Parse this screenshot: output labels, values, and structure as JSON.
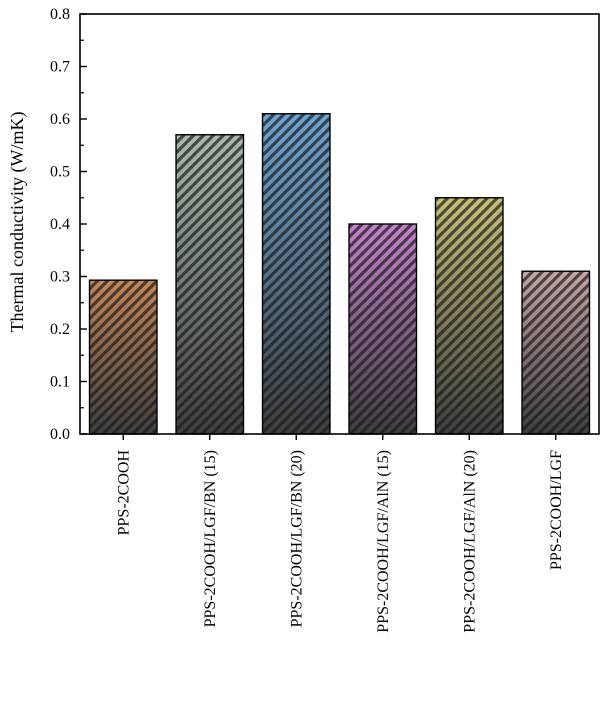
{
  "chart_data": {
    "type": "bar",
    "title": "",
    "xlabel": "",
    "ylabel": "Thermal conductivity (W/mK)",
    "ylim": [
      0,
      0.8
    ],
    "yticks": [
      0.0,
      0.1,
      0.2,
      0.3,
      0.4,
      0.5,
      0.6,
      0.7,
      0.8
    ],
    "ytick_labels": [
      "0.0",
      "0.1",
      "0.2",
      "0.3",
      "0.4",
      "0.5",
      "0.6",
      "0.7",
      "0.8"
    ],
    "grid": false,
    "categories": [
      "PPS-2COOH",
      "PPS-2COOH/LGF/BN (15)",
      "PPS-2COOH/LGF/BN (20)",
      "PPS-2COOH/LGF/AlN (15)",
      "PPS-2COOH/LGF/AlN (20)",
      "PPS-2COOH/LGF"
    ],
    "values": [
      0.293,
      0.57,
      0.61,
      0.4,
      0.45,
      0.31
    ],
    "colors": [
      "#c8895a",
      "#a9bcae",
      "#6ea6d4",
      "#c684cf",
      "#c9c27a",
      "#c9a7a8"
    ],
    "bar_bottom_color": "#3e3e3e",
    "hatch": "diagonal"
  }
}
